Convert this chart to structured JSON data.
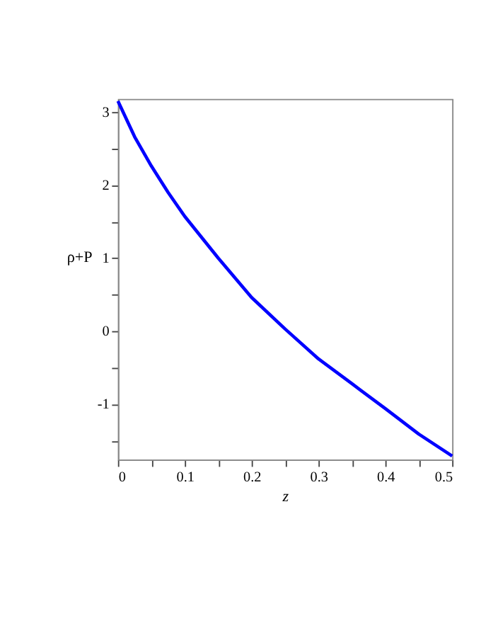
{
  "chart_data": {
    "type": "line",
    "xlabel": "z",
    "ylabel": "ρ+P",
    "x": [
      0,
      0.025,
      0.05,
      0.075,
      0.1,
      0.15,
      0.2,
      0.25,
      0.3,
      0.35,
      0.4,
      0.45,
      0.5
    ],
    "series": [
      {
        "color": "#0000ff",
        "values": [
          3.15,
          2.66,
          2.26,
          1.9,
          1.57,
          1.0,
          0.46,
          0.03,
          -0.38,
          -0.72,
          -1.06,
          -1.41,
          -1.71
        ]
      }
    ],
    "xlim": [
      0,
      0.5
    ],
    "ylim": [
      -1.76,
      3.18
    ],
    "xticks": [
      0,
      {
        "value": 0.05,
        "label": null
      },
      0.1,
      {
        "value": 0.15,
        "label": null
      },
      0.2,
      {
        "value": 0.25,
        "label": null
      },
      0.3,
      {
        "value": 0.35,
        "label": null
      },
      0.4,
      {
        "value": 0.45,
        "label": null
      },
      0.5
    ],
    "yticks": [
      {
        "value": -1.5,
        "label": null
      },
      -1,
      {
        "value": -0.5,
        "label": null
      },
      0,
      {
        "value": 0.5,
        "label": null
      },
      1,
      {
        "value": 1.5,
        "label": null
      },
      2,
      {
        "value": 2.5,
        "label": null
      },
      3
    ],
    "grid": false,
    "legend": false,
    "marker": "none",
    "line_style": "solid"
  }
}
